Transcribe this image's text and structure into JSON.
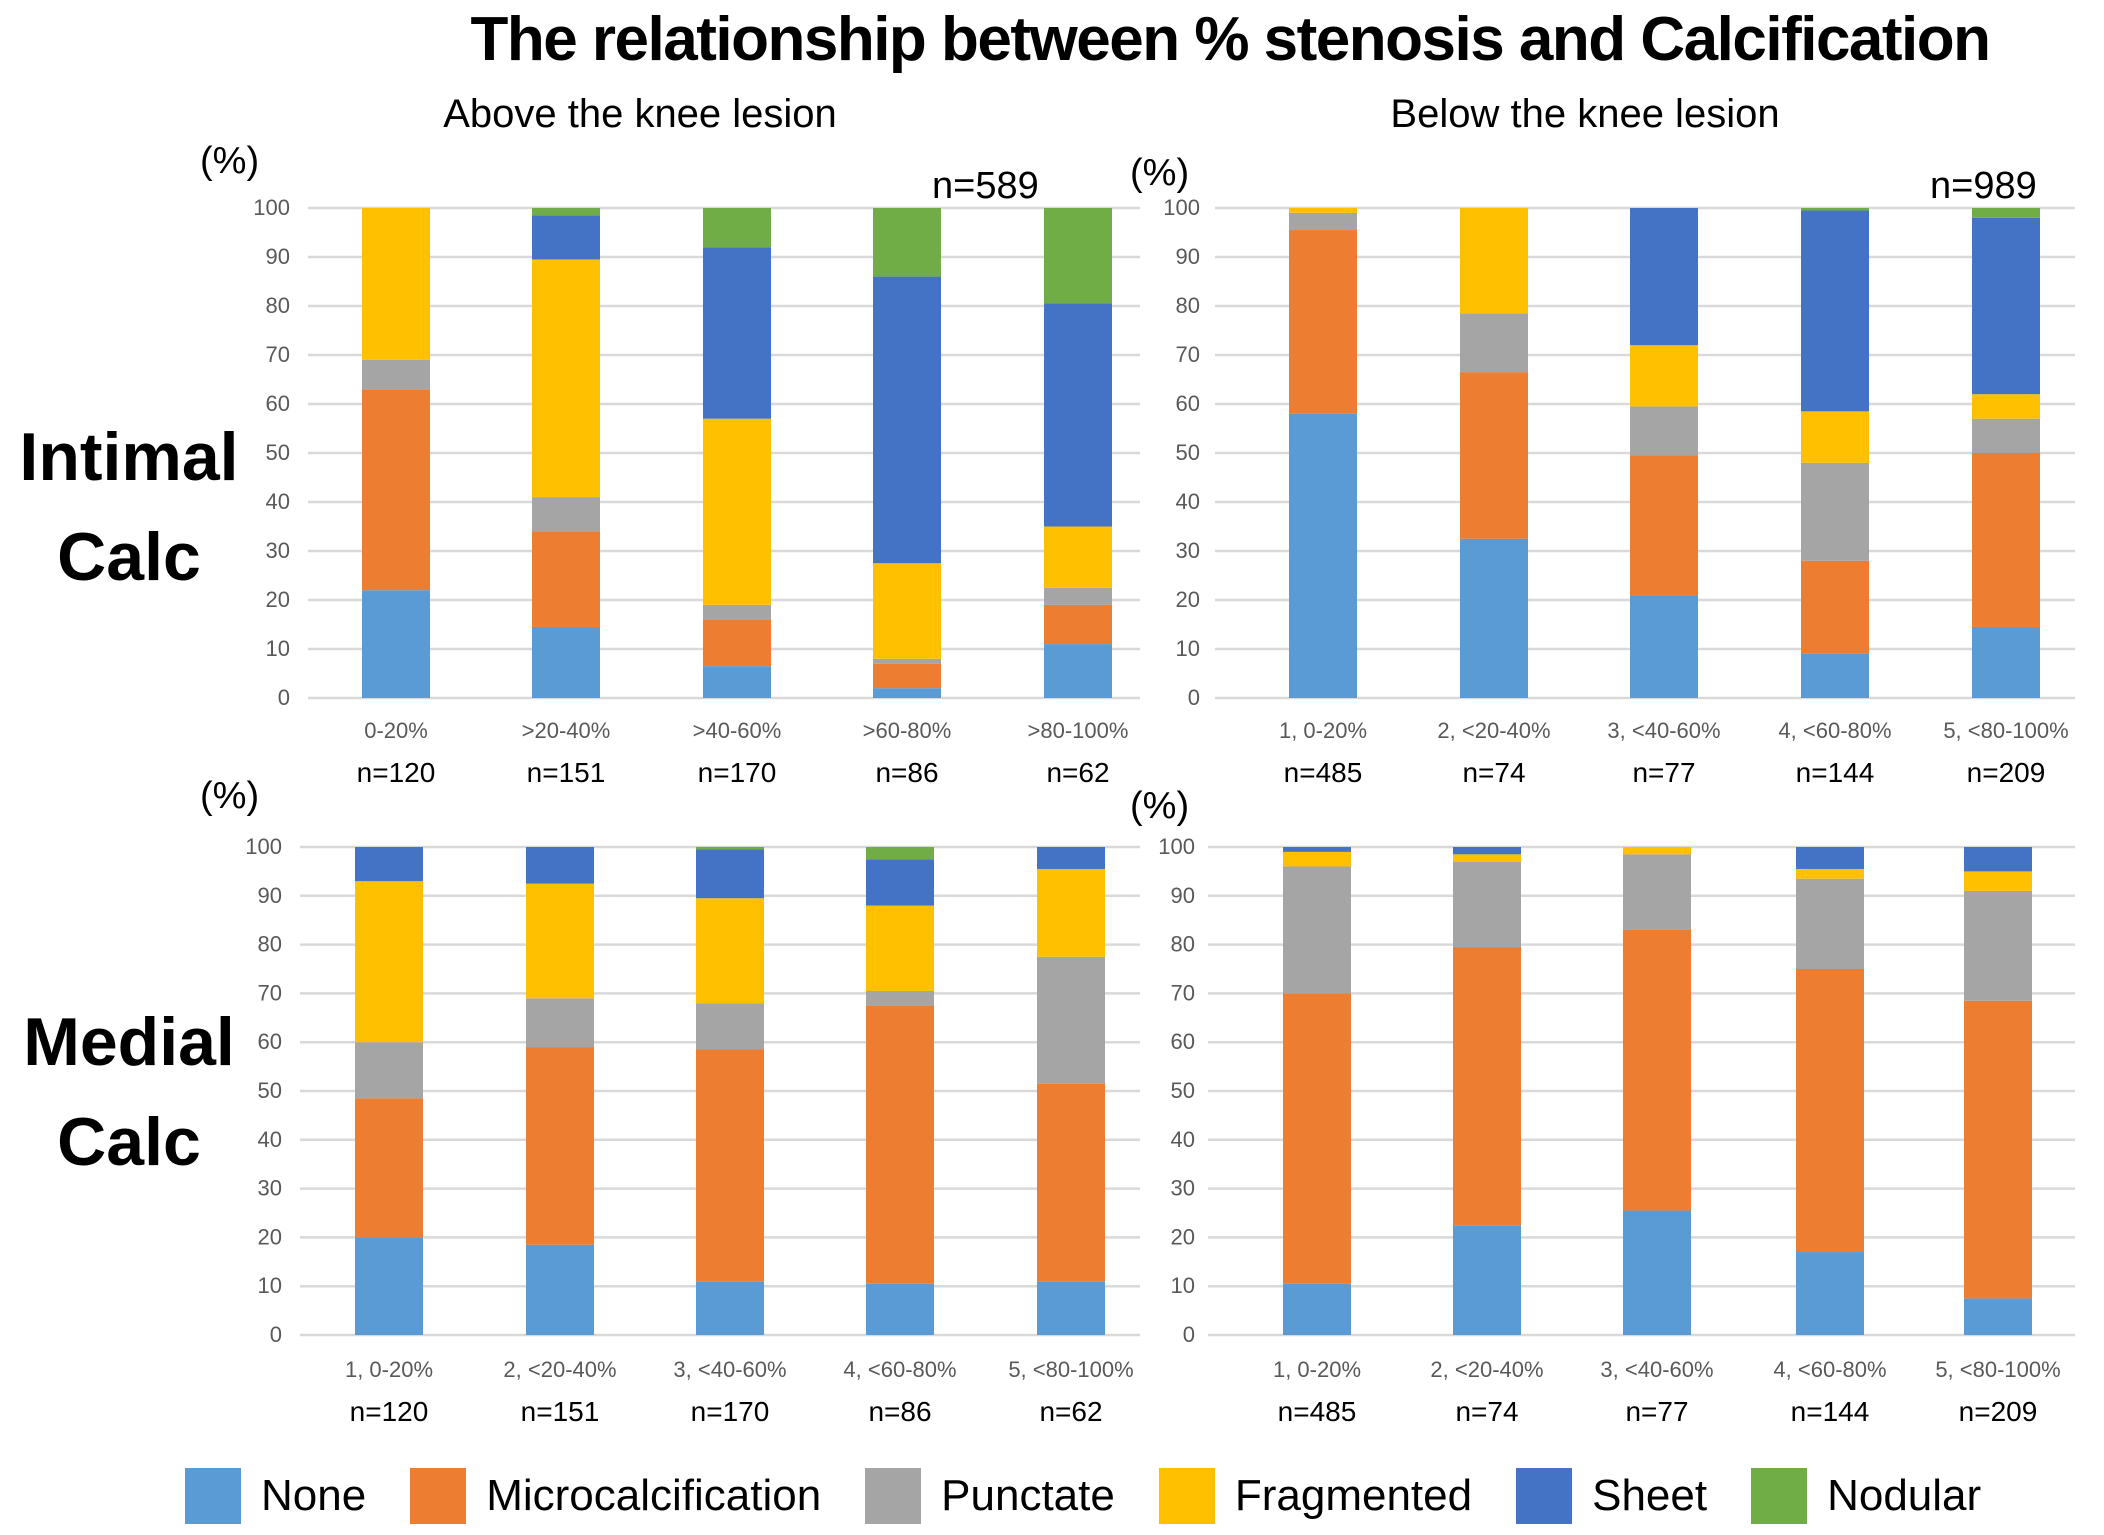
{
  "chart_data": {
    "type": "bar",
    "stacked": true,
    "title": "The relationship between % stenosis and Calcification",
    "column_titles": [
      "Above the knee lesion",
      "Below the knee lesion"
    ],
    "row_labels": [
      "Intimal Calc",
      "Medial Calc"
    ],
    "row_label_lines": [
      [
        "Intimal",
        "Calc"
      ],
      [
        "Medial",
        "Calc"
      ]
    ],
    "ylabel": "(%)",
    "ylim": [
      0,
      100
    ],
    "yticks": [
      0,
      10,
      20,
      30,
      40,
      50,
      60,
      70,
      80,
      90,
      100
    ],
    "grid": true,
    "legend_position": "bottom",
    "series_names": [
      "None",
      "Microcalcification",
      "Punctate",
      "Fragmented",
      "Sheet",
      "Nodular"
    ],
    "series_colors": [
      "#5b9bd5",
      "#ed7d31",
      "#a5a5a5",
      "#ffc000",
      "#4472c4",
      "#70ad47"
    ],
    "panels": [
      {
        "id": "above-intimal",
        "subtitle": "Above the knee lesion",
        "row": "Intimal Calc",
        "total": "n=589",
        "categories": [
          "0-20%",
          ">20-40%",
          ">40-60%",
          ">60-80%",
          ">80-100%"
        ],
        "counts": [
          "n=120",
          "n=151",
          "n=170",
          "n=86",
          "n=62"
        ],
        "series": [
          {
            "name": "None",
            "values": [
              22,
              14.5,
              6.5,
              2,
              11
            ]
          },
          {
            "name": "Microcalcification",
            "values": [
              41,
              19.5,
              9.5,
              5,
              8
            ]
          },
          {
            "name": "Punctate",
            "values": [
              6,
              7,
              3,
              1,
              3.5
            ]
          },
          {
            "name": "Fragmented",
            "values": [
              31,
              48.5,
              38,
              19.5,
              12.5
            ]
          },
          {
            "name": "Sheet",
            "values": [
              0,
              9,
              35,
              58.5,
              45.5
            ]
          },
          {
            "name": "Nodular",
            "values": [
              0,
              1.5,
              8,
              14,
              19.5
            ]
          }
        ]
      },
      {
        "id": "below-intimal",
        "subtitle": "Below the knee lesion",
        "row": "Intimal Calc",
        "total": "n=989",
        "categories": [
          "1, 0-20%",
          "2, <20-40%",
          "3, <40-60%",
          "4, <60-80%",
          "5, <80-100%"
        ],
        "counts": [
          "n=485",
          "n=74",
          "n=77",
          "n=144",
          "n=209"
        ],
        "series": [
          {
            "name": "None",
            "values": [
              58,
              32.5,
              21,
              9,
              14.5
            ]
          },
          {
            "name": "Microcalcification",
            "values": [
              37.5,
              34,
              28.5,
              19,
              35.5
            ]
          },
          {
            "name": "Punctate",
            "values": [
              3.5,
              12,
              10,
              20,
              7
            ]
          },
          {
            "name": "Fragmented",
            "values": [
              1,
              21.5,
              12.5,
              10.5,
              5
            ]
          },
          {
            "name": "Sheet",
            "values": [
              0,
              0,
              28,
              41,
              36
            ]
          },
          {
            "name": "Nodular",
            "values": [
              0,
              0,
              0,
              0.5,
              2
            ]
          }
        ]
      },
      {
        "id": "above-medial",
        "subtitle": "Above the knee lesion",
        "row": "Medial Calc",
        "total": "",
        "categories": [
          "1, 0-20%",
          "2, <20-40%",
          "3, <40-60%",
          "4, <60-80%",
          "5, <80-100%"
        ],
        "counts": [
          "n=120",
          "n=151",
          "n=170",
          "n=86",
          "n=62"
        ],
        "series": [
          {
            "name": "None",
            "values": [
              20,
              18.5,
              11,
              10.5,
              11
            ]
          },
          {
            "name": "Microcalcification",
            "values": [
              28.5,
              40.5,
              47.5,
              57,
              40.5
            ]
          },
          {
            "name": "Punctate",
            "values": [
              11.5,
              10,
              9.5,
              3,
              26
            ]
          },
          {
            "name": "Fragmented",
            "values": [
              33,
              23.5,
              21.5,
              17.5,
              18
            ]
          },
          {
            "name": "Sheet",
            "values": [
              7,
              7.5,
              10,
              9.5,
              4.5
            ]
          },
          {
            "name": "Nodular",
            "values": [
              0,
              0,
              0.5,
              2.5,
              0
            ]
          }
        ]
      },
      {
        "id": "below-medial",
        "subtitle": "Below the knee lesion",
        "row": "Medial Calc",
        "total": "",
        "categories": [
          "1, 0-20%",
          "2, <20-40%",
          "3, <40-60%",
          "4, <60-80%",
          "5, <80-100%"
        ],
        "counts": [
          "n=485",
          "n=74",
          "n=77",
          "n=144",
          "n=209"
        ],
        "series": [
          {
            "name": "None",
            "values": [
              10.5,
              22.5,
              25.5,
              17,
              7.5
            ]
          },
          {
            "name": "Microcalcification",
            "values": [
              59.5,
              57,
              57.5,
              58,
              61
            ]
          },
          {
            "name": "Punctate",
            "values": [
              26,
              17.5,
              15.5,
              18.5,
              22.5
            ]
          },
          {
            "name": "Fragmented",
            "values": [
              3,
              1.5,
              1.5,
              2,
              4
            ]
          },
          {
            "name": "Sheet",
            "values": [
              1,
              1.5,
              0,
              4.5,
              5
            ]
          },
          {
            "name": "Nodular",
            "values": [
              0,
              0,
              0,
              0,
              0
            ]
          }
        ]
      }
    ]
  }
}
